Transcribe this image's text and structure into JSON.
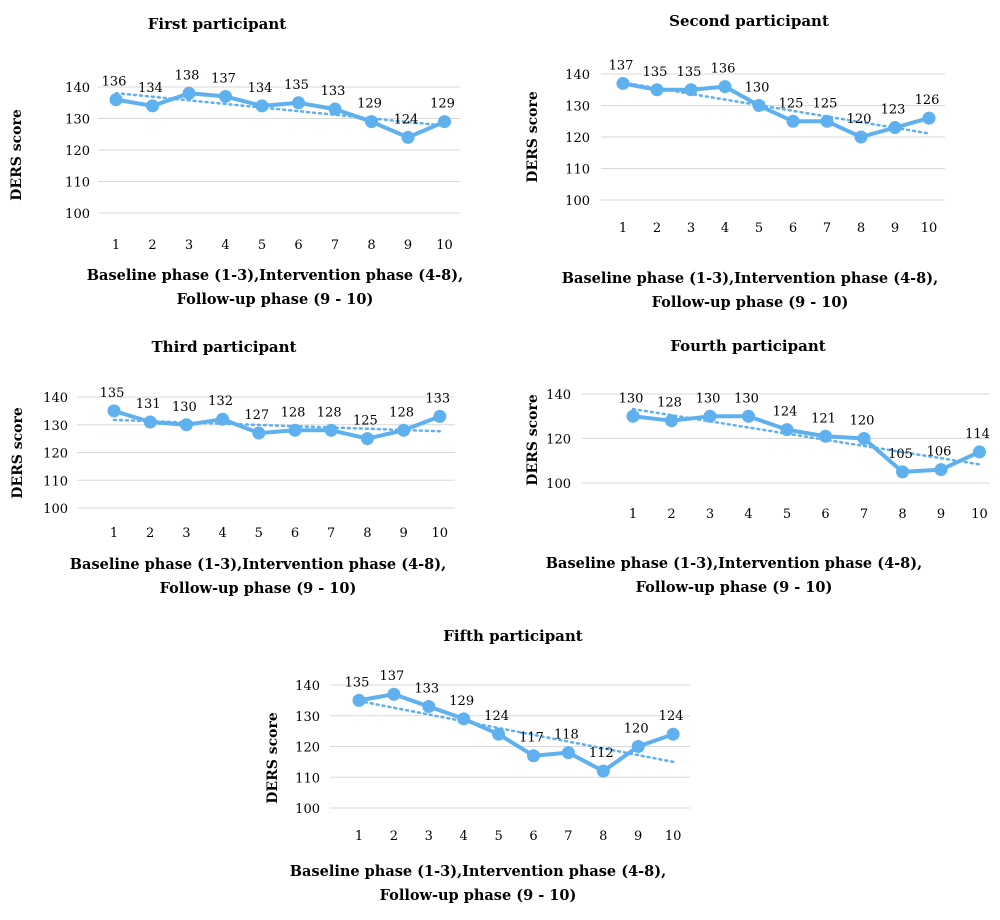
{
  "chart_data": [
    {
      "type": "line",
      "title": "First participant",
      "ylabel": "DERS score",
      "xlabel_line1": "Baseline phase (1-3),Intervention phase (4-8),",
      "xlabel_line2": "Follow-up phase (9 - 10)",
      "x": [
        1,
        2,
        3,
        4,
        5,
        6,
        7,
        8,
        9,
        10
      ],
      "yticks": [
        100,
        110,
        120,
        130,
        140
      ],
      "ylim": [
        100,
        140
      ],
      "trendline": "linear",
      "series": [
        {
          "values": [
            136,
            134,
            138,
            137,
            134,
            135,
            133,
            129,
            124,
            129
          ],
          "color": "#5fb0ef"
        }
      ]
    },
    {
      "type": "line",
      "title": "Second participant",
      "ylabel": "DERS score",
      "xlabel_line1": "Baseline phase (1-3),Intervention phase (4-8),",
      "xlabel_line2": "Follow-up phase (9 - 10)",
      "x": [
        1,
        2,
        3,
        4,
        5,
        6,
        7,
        8,
        9,
        10
      ],
      "yticks": [
        100,
        110,
        120,
        130,
        140
      ],
      "ylim": [
        100,
        140
      ],
      "trendline": "linear",
      "series": [
        {
          "values": [
            137,
            135,
            135,
            136,
            130,
            125,
            125,
            120,
            123,
            126
          ],
          "color": "#5fb0ef"
        }
      ]
    },
    {
      "type": "line",
      "title": "Third participant",
      "ylabel": "DERS score",
      "xlabel_line1": "Baseline phase (1-3),Intervention phase (4-8),",
      "xlabel_line2": "Follow-up phase (9 - 10)",
      "x": [
        1,
        2,
        3,
        4,
        5,
        6,
        7,
        8,
        9,
        10
      ],
      "yticks": [
        100,
        110,
        120,
        130,
        140
      ],
      "ylim": [
        100,
        140
      ],
      "trendline": "linear",
      "series": [
        {
          "values": [
            135,
            131,
            130,
            132,
            127,
            128,
            128,
            125,
            128,
            133
          ],
          "color": "#5fb0ef"
        }
      ]
    },
    {
      "type": "line",
      "title": "Fourth participant",
      "ylabel": "DERS score",
      "xlabel_line1": "Baseline phase (1-3),Intervention phase (4-8),",
      "xlabel_line2": "Follow-up phase (9 - 10)",
      "x": [
        1,
        2,
        3,
        4,
        5,
        6,
        7,
        8,
        9,
        10
      ],
      "yticks": [
        100,
        120,
        140
      ],
      "ylim": [
        100,
        140
      ],
      "trendline": "linear",
      "series": [
        {
          "values": [
            130,
            128,
            130,
            130,
            124,
            121,
            120,
            105,
            106,
            114
          ],
          "color": "#5fb0ef"
        }
      ]
    },
    {
      "type": "line",
      "title": "Fifth participant",
      "ylabel": "DERS score",
      "xlabel_line1": "Baseline phase (1-3),Intervention phase (4-8),",
      "xlabel_line2": "Follow-up phase (9 - 10)",
      "x": [
        1,
        2,
        3,
        4,
        5,
        6,
        7,
        8,
        9,
        10
      ],
      "yticks": [
        100,
        110,
        120,
        130,
        140
      ],
      "ylim": [
        100,
        140
      ],
      "trendline": "linear",
      "series": [
        {
          "values": [
            135,
            137,
            133,
            129,
            124,
            117,
            118,
            112,
            120,
            124
          ],
          "color": "#5fb0ef"
        }
      ]
    }
  ]
}
